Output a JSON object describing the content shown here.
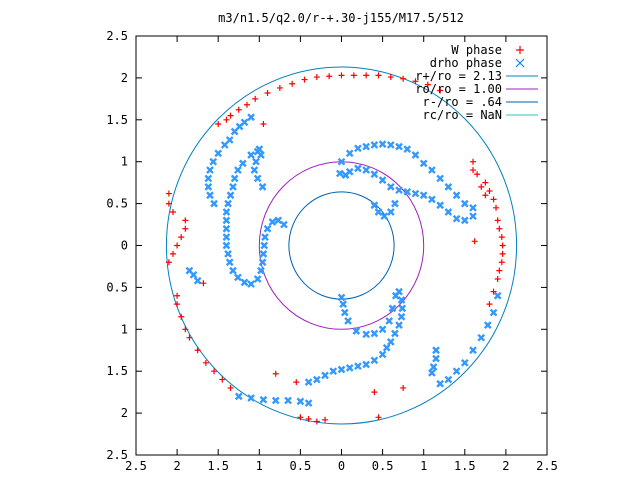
{
  "chart_data": {
    "type": "scatter",
    "title": "m3/n1.5/q2.0/r-+.30-j155/M17.5/512",
    "xlabel": "",
    "ylabel": "",
    "xlim": [
      -2.5,
      2.5
    ],
    "ylim": [
      -2.5,
      2.5
    ],
    "x_tick_labels": [
      "2.5",
      "2",
      "1.5",
      "1",
      "0.5",
      "0",
      "0.5",
      "1",
      "1.5",
      "2",
      "2.5"
    ],
    "y_tick_labels": [
      "2.5",
      "2",
      "1.5",
      "1",
      "0.5",
      "0",
      "0.5",
      "1",
      "1.5",
      "2",
      "2.5"
    ],
    "legend_position": "top-right",
    "grid": false,
    "legend": [
      {
        "label": "W phase",
        "color": "#ff0000",
        "marker": "plus"
      },
      {
        "label": "drho phase",
        "color": "#0088ff",
        "marker": "cross"
      },
      {
        "label": "r+/ro = 2.13",
        "color": "#0080c0",
        "marker": "line"
      },
      {
        "label": "ro/ro = 1.00",
        "color": "#a020c0",
        "marker": "line"
      },
      {
        "label": "r-/ro = .64",
        "color": "#0060b0",
        "marker": "line"
      },
      {
        "label": "rc/ro = NaN",
        "color": "#30c0d0",
        "marker": "line"
      }
    ],
    "circles": [
      {
        "name": "r+/ro = 2.13",
        "radius": 2.13,
        "color": "#0080c0"
      },
      {
        "name": "ro/ro = 1.00",
        "radius": 1.0,
        "color": "#a020c0"
      },
      {
        "name": "r-/ro = .64",
        "radius": 0.64,
        "color": "#0060b0"
      }
    ],
    "series": [
      {
        "name": "drho phase",
        "color": "#3399ff",
        "points": [
          [
            -1.55,
            0.5
          ],
          [
            -1.6,
            0.6
          ],
          [
            -1.62,
            0.7
          ],
          [
            -1.62,
            0.8
          ],
          [
            -1.6,
            0.9
          ],
          [
            -1.56,
            1.0
          ],
          [
            -1.5,
            1.1
          ],
          [
            -1.42,
            1.2
          ],
          [
            -1.36,
            1.26
          ],
          [
            -1.24,
            1.42
          ],
          [
            -1.3,
            1.36
          ],
          [
            -1.18,
            1.47
          ],
          [
            -1.1,
            1.53
          ],
          [
            -1.02,
            1.12
          ],
          [
            -1.1,
            1.08
          ],
          [
            -1.2,
            0.98
          ],
          [
            -1.26,
            0.9
          ],
          [
            -1.3,
            0.8
          ],
          [
            -1.32,
            0.7
          ],
          [
            -1.35,
            0.6
          ],
          [
            -1.38,
            0.5
          ],
          [
            -1.4,
            0.4
          ],
          [
            -1.4,
            0.3
          ],
          [
            -1.4,
            0.2
          ],
          [
            -1.4,
            0.1
          ],
          [
            -1.4,
            0.0
          ],
          [
            -1.38,
            -0.1
          ],
          [
            -1.36,
            -0.2
          ],
          [
            -1.32,
            -0.3
          ],
          [
            -1.26,
            -0.38
          ],
          [
            -1.18,
            -0.44
          ],
          [
            -1.1,
            -0.46
          ],
          [
            -1.02,
            -0.4
          ],
          [
            -0.98,
            -0.3
          ],
          [
            -0.96,
            -0.2
          ],
          [
            -0.95,
            -0.1
          ],
          [
            -0.94,
            0.0
          ],
          [
            -0.93,
            0.1
          ],
          [
            -0.9,
            0.2
          ],
          [
            -0.84,
            0.28
          ],
          [
            -0.77,
            0.3
          ],
          [
            -0.7,
            0.25
          ],
          [
            -1.85,
            -0.3
          ],
          [
            -1.8,
            -0.35
          ],
          [
            -1.75,
            -0.42
          ],
          [
            -0.4,
            -1.63
          ],
          [
            -0.3,
            -1.6
          ],
          [
            -0.2,
            -1.55
          ],
          [
            -0.1,
            -1.5
          ],
          [
            0.0,
            -1.48
          ],
          [
            0.1,
            -1.46
          ],
          [
            0.2,
            -1.44
          ],
          [
            0.3,
            -1.42
          ],
          [
            0.4,
            -1.37
          ],
          [
            0.5,
            -1.3
          ],
          [
            0.55,
            -1.22
          ],
          [
            0.6,
            -1.15
          ],
          [
            0.65,
            -1.05
          ],
          [
            0.7,
            -0.95
          ],
          [
            0.73,
            -0.85
          ],
          [
            0.74,
            -0.75
          ],
          [
            0.73,
            -0.65
          ],
          [
            0.7,
            -0.55
          ],
          [
            0.66,
            -0.6
          ],
          [
            0.62,
            -0.75
          ],
          [
            0.58,
            -0.9
          ],
          [
            0.5,
            -1.0
          ],
          [
            0.4,
            -1.05
          ],
          [
            0.3,
            -1.06
          ],
          [
            0.18,
            -1.02
          ],
          [
            0.08,
            -0.9
          ],
          [
            0.04,
            -0.8
          ],
          [
            0.02,
            -0.7
          ],
          [
            0.0,
            -0.62
          ],
          [
            1.15,
            -1.25
          ],
          [
            1.15,
            -1.35
          ],
          [
            1.12,
            -1.45
          ],
          [
            1.1,
            -1.52
          ],
          [
            1.2,
            -1.65
          ],
          [
            1.3,
            -1.6
          ],
          [
            1.4,
            -1.5
          ],
          [
            1.5,
            -1.4
          ],
          [
            1.6,
            -1.25
          ],
          [
            1.7,
            -1.1
          ],
          [
            1.78,
            -0.95
          ],
          [
            1.85,
            -0.8
          ],
          [
            1.9,
            -0.6
          ],
          [
            0.0,
            1.0
          ],
          [
            0.1,
            1.1
          ],
          [
            0.2,
            1.16
          ],
          [
            0.3,
            1.18
          ],
          [
            0.4,
            1.2
          ],
          [
            0.5,
            1.21
          ],
          [
            0.6,
            1.2
          ],
          [
            0.7,
            1.18
          ],
          [
            0.8,
            1.15
          ],
          [
            0.9,
            1.08
          ],
          [
            1.0,
            0.98
          ],
          [
            1.1,
            0.9
          ],
          [
            1.2,
            0.8
          ],
          [
            1.3,
            0.7
          ],
          [
            1.4,
            0.6
          ],
          [
            1.5,
            0.5
          ],
          [
            1.6,
            0.45
          ],
          [
            1.6,
            0.35
          ],
          [
            1.5,
            0.3
          ],
          [
            1.4,
            0.32
          ],
          [
            1.3,
            0.4
          ],
          [
            1.2,
            0.48
          ],
          [
            1.1,
            0.55
          ],
          [
            1.0,
            0.6
          ],
          [
            0.9,
            0.62
          ],
          [
            0.8,
            0.64
          ],
          [
            0.7,
            0.66
          ],
          [
            0.6,
            0.7
          ],
          [
            0.5,
            0.78
          ],
          [
            0.4,
            0.85
          ],
          [
            0.3,
            0.9
          ],
          [
            0.2,
            0.92
          ],
          [
            0.1,
            0.88
          ],
          [
            0.05,
            0.84
          ],
          [
            -0.02,
            0.86
          ],
          [
            0.4,
            0.48
          ],
          [
            0.45,
            0.4
          ],
          [
            0.52,
            0.35
          ],
          [
            0.6,
            0.4
          ],
          [
            0.65,
            0.5
          ],
          [
            -0.96,
            0.7
          ],
          [
            -1.02,
            0.8
          ],
          [
            -1.06,
            0.9
          ],
          [
            -1.04,
            1.0
          ],
          [
            -0.98,
            1.08
          ],
          [
            -1.0,
            1.15
          ],
          [
            -1.25,
            -1.8
          ],
          [
            -1.1,
            -1.82
          ],
          [
            -0.95,
            -1.84
          ],
          [
            -0.8,
            -1.85
          ],
          [
            -0.65,
            -1.85
          ],
          [
            -0.5,
            -1.86
          ],
          [
            -0.4,
            -1.88
          ]
        ]
      },
      {
        "name": "W phase",
        "color": "#ff0000",
        "points": [
          [
            -1.68,
            -0.45
          ],
          [
            -0.8,
            -1.53
          ],
          [
            -0.55,
            -1.63
          ],
          [
            -0.95,
            1.45
          ],
          [
            1.62,
            0.05
          ],
          [
            -2.1,
            0.62
          ],
          [
            -2.1,
            0.5
          ],
          [
            -2.05,
            0.4
          ],
          [
            -1.9,
            0.3
          ],
          [
            -1.9,
            0.2
          ],
          [
            -1.95,
            0.1
          ],
          [
            -2.0,
            0.0
          ],
          [
            -2.05,
            -0.1
          ],
          [
            -2.1,
            -0.2
          ],
          [
            -2.0,
            -0.6
          ],
          [
            -2.0,
            -0.7
          ],
          [
            -1.95,
            -0.85
          ],
          [
            -1.9,
            -1.0
          ],
          [
            -1.85,
            -1.1
          ],
          [
            -1.75,
            -1.25
          ],
          [
            -1.65,
            -1.4
          ],
          [
            -1.55,
            -1.5
          ],
          [
            -1.45,
            -1.6
          ],
          [
            -1.35,
            -1.7
          ],
          [
            -0.5,
            -2.05
          ],
          [
            -0.4,
            -2.07
          ],
          [
            -0.3,
            -2.1
          ],
          [
            -0.2,
            -2.08
          ],
          [
            0.45,
            -2.05
          ],
          [
            0.4,
            -1.75
          ],
          [
            0.75,
            -1.7
          ],
          [
            -1.5,
            1.45
          ],
          [
            -1.4,
            1.5
          ],
          [
            -1.35,
            1.55
          ],
          [
            -1.25,
            1.62
          ],
          [
            -1.15,
            1.68
          ],
          [
            -1.05,
            1.75
          ],
          [
            -0.9,
            1.82
          ],
          [
            -0.75,
            1.88
          ],
          [
            -0.6,
            1.93
          ],
          [
            -0.45,
            1.98
          ],
          [
            -0.3,
            2.01
          ],
          [
            -0.15,
            2.02
          ],
          [
            0.0,
            2.03
          ],
          [
            0.15,
            2.03
          ],
          [
            0.3,
            2.03
          ],
          [
            0.45,
            2.03
          ],
          [
            0.6,
            2.01
          ],
          [
            0.75,
            1.99
          ],
          [
            0.9,
            1.96
          ],
          [
            1.05,
            1.92
          ],
          [
            1.2,
            1.85
          ],
          [
            1.6,
            0.9
          ],
          [
            1.75,
            0.75
          ],
          [
            1.8,
            0.65
          ],
          [
            1.85,
            0.55
          ],
          [
            1.88,
            0.45
          ],
          [
            1.9,
            0.3
          ],
          [
            1.92,
            0.2
          ],
          [
            1.95,
            0.1
          ],
          [
            1.96,
            0.0
          ],
          [
            1.96,
            -0.1
          ],
          [
            1.95,
            -0.2
          ],
          [
            1.92,
            -0.3
          ],
          [
            1.9,
            -0.4
          ],
          [
            1.85,
            -0.55
          ],
          [
            1.8,
            -0.7
          ],
          [
            1.6,
            1.0
          ],
          [
            1.65,
            0.85
          ],
          [
            1.7,
            0.7
          ],
          [
            1.75,
            0.6
          ]
        ]
      }
    ]
  }
}
